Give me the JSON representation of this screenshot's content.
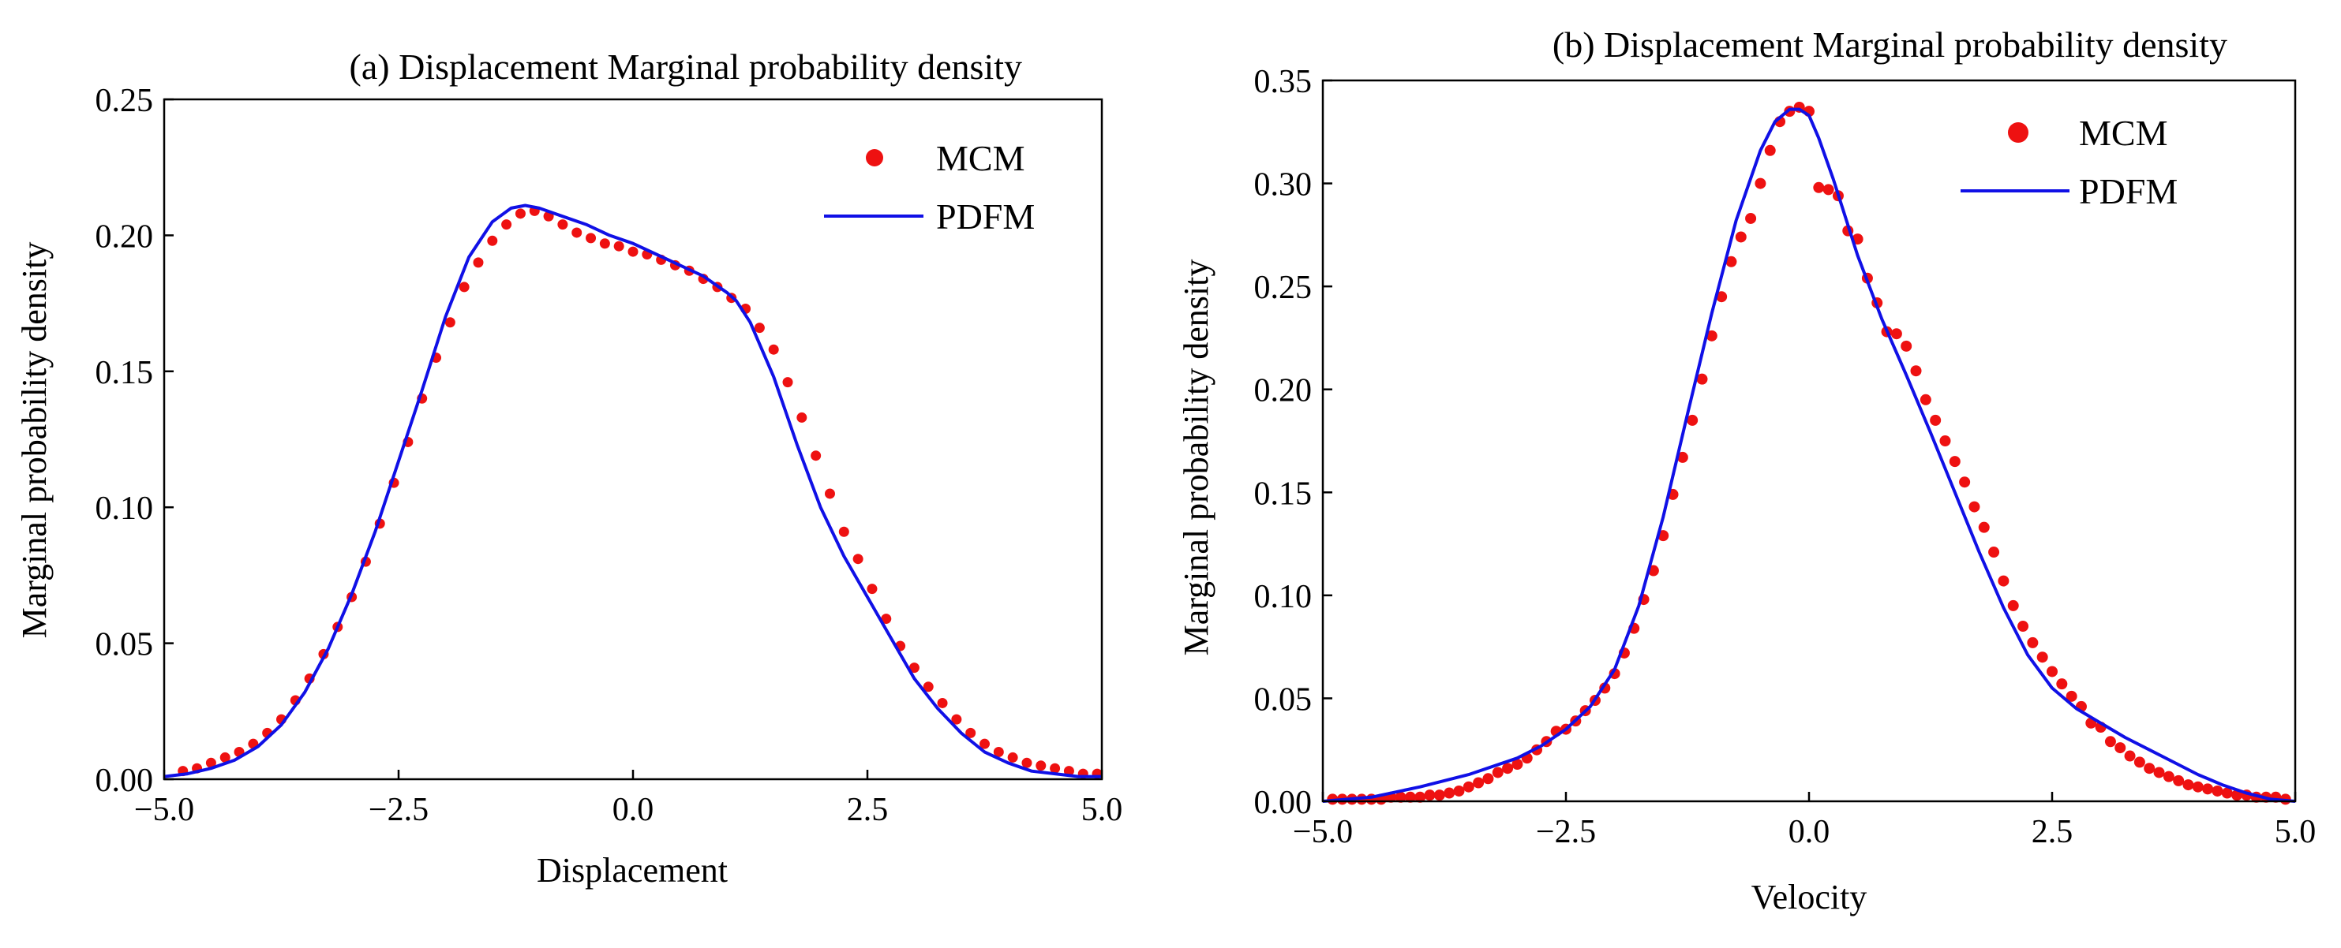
{
  "chart_data": [
    {
      "type": "line",
      "title": "(a) Displacement Marginal probability density",
      "xlabel": "Displacement",
      "ylabel": "Marginal probability density",
      "xlim": [
        -5.0,
        5.0
      ],
      "ylim": [
        0.0,
        0.25
      ],
      "xticks": [
        -5.0,
        -2.5,
        0.0,
        2.5,
        5.0
      ],
      "xtick_labels": [
        "−5.0",
        "−2.5",
        "0.0",
        "2.5",
        "5.0"
      ],
      "yticks": [
        0.0,
        0.05,
        0.1,
        0.15,
        0.2,
        0.25
      ],
      "ytick_labels": [
        "0.00",
        "0.05",
        "0.10",
        "0.15",
        "0.20",
        "0.25"
      ],
      "legend_position": "top-right",
      "series": [
        {
          "name": "MCM",
          "kind": "scatter",
          "color": "#ee1111",
          "x": [
            -4.8,
            -4.65,
            -4.5,
            -4.35,
            -4.2,
            -4.05,
            -3.9,
            -3.75,
            -3.6,
            -3.45,
            -3.3,
            -3.15,
            -3.0,
            -2.85,
            -2.7,
            -2.55,
            -2.4,
            -2.25,
            -2.1,
            -1.95,
            -1.8,
            -1.65,
            -1.5,
            -1.35,
            -1.2,
            -1.05,
            -0.9,
            -0.75,
            -0.6,
            -0.45,
            -0.3,
            -0.15,
            0.0,
            0.15,
            0.3,
            0.45,
            0.6,
            0.75,
            0.9,
            1.05,
            1.2,
            1.35,
            1.5,
            1.65,
            1.8,
            1.95,
            2.1,
            2.25,
            2.4,
            2.55,
            2.7,
            2.85,
            3.0,
            3.15,
            3.3,
            3.45,
            3.6,
            3.75,
            3.9,
            4.05,
            4.2,
            4.35,
            4.5,
            4.65,
            4.8,
            4.95
          ],
          "y": [
            0.003,
            0.004,
            0.006,
            0.008,
            0.01,
            0.013,
            0.017,
            0.022,
            0.029,
            0.037,
            0.046,
            0.056,
            0.067,
            0.08,
            0.094,
            0.109,
            0.124,
            0.14,
            0.155,
            0.168,
            0.181,
            0.19,
            0.198,
            0.204,
            0.208,
            0.209,
            0.207,
            0.204,
            0.201,
            0.199,
            0.197,
            0.196,
            0.194,
            0.193,
            0.191,
            0.189,
            0.187,
            0.184,
            0.181,
            0.177,
            0.173,
            0.166,
            0.158,
            0.146,
            0.133,
            0.119,
            0.105,
            0.091,
            0.081,
            0.07,
            0.059,
            0.049,
            0.041,
            0.034,
            0.028,
            0.022,
            0.017,
            0.013,
            0.01,
            0.008,
            0.006,
            0.005,
            0.004,
            0.003,
            0.002,
            0.002
          ]
        },
        {
          "name": "PDFM",
          "kind": "line",
          "color": "#1010e6",
          "x": [
            -5.0,
            -4.75,
            -4.5,
            -4.25,
            -4.0,
            -3.75,
            -3.5,
            -3.25,
            -3.0,
            -2.75,
            -2.5,
            -2.25,
            -2.0,
            -1.75,
            -1.5,
            -1.3,
            -1.15,
            -1.0,
            -0.75,
            -0.5,
            -0.25,
            0.0,
            0.25,
            0.5,
            0.75,
            1.0,
            1.1,
            1.25,
            1.5,
            1.75,
            2.0,
            2.25,
            2.5,
            2.75,
            3.0,
            3.25,
            3.5,
            3.75,
            4.0,
            4.25,
            4.5,
            4.75,
            5.0
          ],
          "y": [
            0.001,
            0.002,
            0.004,
            0.007,
            0.012,
            0.02,
            0.032,
            0.048,
            0.068,
            0.091,
            0.117,
            0.143,
            0.17,
            0.192,
            0.205,
            0.21,
            0.211,
            0.21,
            0.207,
            0.204,
            0.2,
            0.197,
            0.193,
            0.189,
            0.185,
            0.179,
            0.176,
            0.168,
            0.148,
            0.123,
            0.1,
            0.082,
            0.067,
            0.052,
            0.037,
            0.026,
            0.017,
            0.01,
            0.006,
            0.003,
            0.002,
            0.001,
            0.001
          ]
        }
      ]
    },
    {
      "type": "line",
      "title": "(b) Displacement Marginal probability density",
      "xlabel": "Velocity",
      "ylabel": "Marginal probability density",
      "xlim": [
        -5.0,
        5.0
      ],
      "ylim": [
        0.0,
        0.35
      ],
      "xticks": [
        -5.0,
        -2.5,
        0.0,
        2.5,
        5.0
      ],
      "xtick_labels": [
        "−5.0",
        "−2.5",
        "0.0",
        "2.5",
        "5.0"
      ],
      "yticks": [
        0.0,
        0.05,
        0.1,
        0.15,
        0.2,
        0.25,
        0.3,
        0.35
      ],
      "ytick_labels": [
        "0.00",
        "0.05",
        "0.10",
        "0.15",
        "0.20",
        "0.25",
        "0.30",
        "0.35"
      ],
      "legend_position": "top-right",
      "series": [
        {
          "name": "MCM",
          "kind": "scatter",
          "color": "#ee1111",
          "x": [
            -4.9,
            -4.8,
            -4.7,
            -4.6,
            -4.5,
            -4.4,
            -4.3,
            -4.2,
            -4.1,
            -4.0,
            -3.9,
            -3.8,
            -3.7,
            -3.6,
            -3.5,
            -3.4,
            -3.3,
            -3.2,
            -3.1,
            -3.0,
            -2.9,
            -2.8,
            -2.7,
            -2.6,
            -2.5,
            -2.4,
            -2.3,
            -2.2,
            -2.1,
            -2.0,
            -1.9,
            -1.8,
            -1.7,
            -1.6,
            -1.5,
            -1.4,
            -1.3,
            -1.2,
            -1.1,
            -1.0,
            -0.9,
            -0.8,
            -0.7,
            -0.6,
            -0.5,
            -0.4,
            -0.3,
            -0.2,
            -0.1,
            0.0,
            0.1,
            0.2,
            0.3,
            0.4,
            0.5,
            0.6,
            0.7,
            0.8,
            0.9,
            1.0,
            1.1,
            1.2,
            1.3,
            1.4,
            1.5,
            1.6,
            1.7,
            1.8,
            1.9,
            2.0,
            2.1,
            2.2,
            2.3,
            2.4,
            2.5,
            2.6,
            2.7,
            2.8,
            2.9,
            3.0,
            3.1,
            3.2,
            3.3,
            3.4,
            3.5,
            3.6,
            3.7,
            3.8,
            3.9,
            4.0,
            4.1,
            4.2,
            4.3,
            4.4,
            4.5,
            4.6,
            4.7,
            4.8,
            4.9
          ],
          "y": [
            0.001,
            0.001,
            0.001,
            0.001,
            0.001,
            0.001,
            0.002,
            0.002,
            0.002,
            0.002,
            0.003,
            0.003,
            0.004,
            0.005,
            0.007,
            0.009,
            0.011,
            0.014,
            0.016,
            0.018,
            0.021,
            0.025,
            0.029,
            0.034,
            0.035,
            0.039,
            0.044,
            0.049,
            0.055,
            0.062,
            0.072,
            0.084,
            0.098,
            0.112,
            0.129,
            0.149,
            0.167,
            0.185,
            0.205,
            0.226,
            0.245,
            0.262,
            0.274,
            0.283,
            0.3,
            0.316,
            0.33,
            0.335,
            0.337,
            0.335,
            0.298,
            0.297,
            0.294,
            0.277,
            0.273,
            0.254,
            0.242,
            0.228,
            0.227,
            0.221,
            0.209,
            0.195,
            0.185,
            0.175,
            0.165,
            0.155,
            0.143,
            0.133,
            0.121,
            0.107,
            0.095,
            0.085,
            0.077,
            0.07,
            0.063,
            0.057,
            0.051,
            0.046,
            0.038,
            0.036,
            0.029,
            0.026,
            0.022,
            0.019,
            0.016,
            0.014,
            0.012,
            0.01,
            0.008,
            0.007,
            0.006,
            0.005,
            0.004,
            0.003,
            0.003,
            0.002,
            0.002,
            0.002,
            0.001
          ]
        },
        {
          "name": "PDFM",
          "kind": "line",
          "color": "#1010e6",
          "x": [
            -5.0,
            -4.5,
            -4.0,
            -3.5,
            -3.0,
            -2.75,
            -2.5,
            -2.25,
            -2.0,
            -1.75,
            -1.5,
            -1.25,
            -1.0,
            -0.75,
            -0.5,
            -0.35,
            -0.2,
            -0.1,
            0.0,
            0.1,
            0.25,
            0.5,
            0.75,
            1.0,
            1.25,
            1.5,
            1.75,
            2.0,
            2.25,
            2.5,
            2.75,
            3.0,
            3.25,
            3.5,
            3.75,
            4.0,
            4.25,
            4.5,
            4.75,
            5.0
          ],
          "y": [
            0.0,
            0.002,
            0.007,
            0.013,
            0.021,
            0.027,
            0.035,
            0.046,
            0.064,
            0.095,
            0.138,
            0.188,
            0.237,
            0.282,
            0.316,
            0.33,
            0.336,
            0.336,
            0.333,
            0.322,
            0.302,
            0.265,
            0.234,
            0.207,
            0.179,
            0.15,
            0.121,
            0.094,
            0.071,
            0.055,
            0.045,
            0.038,
            0.031,
            0.025,
            0.019,
            0.013,
            0.008,
            0.004,
            0.001,
            0.0
          ]
        }
      ]
    }
  ]
}
